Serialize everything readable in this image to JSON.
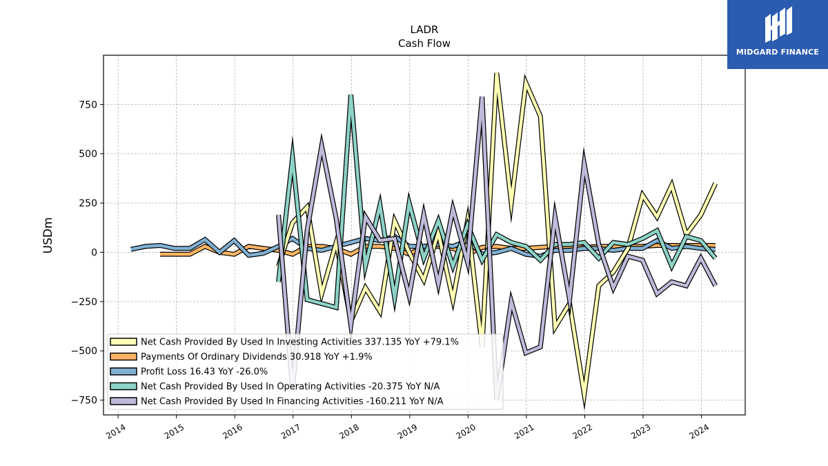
{
  "chart_data": {
    "type": "line",
    "title": "LADR",
    "subtitle": "Cash Flow",
    "xlabel": "",
    "ylabel": "USDm",
    "xlim": [
      2013.75,
      2024.75
    ],
    "ylim": [
      -825,
      1000
    ],
    "yticks": [
      -750,
      -500,
      -250,
      0,
      250,
      500,
      750
    ],
    "ytick_labels": [
      "−750",
      "−500",
      "−250",
      "0",
      "250",
      "500",
      "750"
    ],
    "xticks": [
      2014,
      2015,
      2016,
      2017,
      2018,
      2019,
      2020,
      2021,
      2022,
      2023,
      2024
    ],
    "xtick_labels": [
      "2014",
      "2015",
      "2016",
      "2017",
      "2018",
      "2019",
      "2020",
      "2021",
      "2022",
      "2023",
      "2024"
    ],
    "grid": true,
    "legend_position": "lower-left",
    "series": [
      {
        "name": "Payments Of Ordinary Dividends",
        "legend": "Payments Of Ordinary Dividends  30.918 YoY +1.9%",
        "color": "#fdb462",
        "points": [
          [
            2014.72,
            -10
          ],
          [
            2014.97,
            -10
          ],
          [
            2015.23,
            -10
          ],
          [
            2015.49,
            30
          ],
          [
            2015.74,
            0
          ],
          [
            2015.99,
            -10
          ],
          [
            2016.24,
            30
          ],
          [
            2016.49,
            20
          ],
          [
            2016.75,
            10
          ],
          [
            2016.99,
            -10
          ],
          [
            2017.24,
            30
          ],
          [
            2017.49,
            30
          ],
          [
            2017.74,
            20
          ],
          [
            2017.99,
            -10
          ],
          [
            2018.24,
            30
          ],
          [
            2018.49,
            30
          ],
          [
            2018.74,
            20
          ],
          [
            2018.99,
            -10
          ],
          [
            2019.24,
            30
          ],
          [
            2019.49,
            30
          ],
          [
            2019.74,
            20
          ],
          [
            2019.99,
            -10
          ],
          [
            2020.24,
            25
          ],
          [
            2020.49,
            30
          ],
          [
            2020.74,
            20
          ],
          [
            2020.99,
            20
          ],
          [
            2021.24,
            25
          ],
          [
            2021.49,
            30
          ],
          [
            2021.74,
            30
          ],
          [
            2021.99,
            25
          ],
          [
            2022.24,
            30
          ],
          [
            2022.49,
            30
          ],
          [
            2022.74,
            30
          ],
          [
            2022.99,
            30
          ],
          [
            2023.24,
            35
          ],
          [
            2023.49,
            35
          ],
          [
            2023.74,
            35
          ],
          [
            2023.99,
            35
          ],
          [
            2024.24,
            35
          ]
        ]
      },
      {
        "name": "Profit Loss",
        "legend": "Profit Loss  16.43 YoY -26.0%",
        "color": "#80b1d3",
        "points": [
          [
            2014.22,
            15
          ],
          [
            2014.47,
            30
          ],
          [
            2014.72,
            35
          ],
          [
            2014.97,
            20
          ],
          [
            2015.23,
            20
          ],
          [
            2015.49,
            65
          ],
          [
            2015.74,
            0
          ],
          [
            2015.99,
            60
          ],
          [
            2016.24,
            -15
          ],
          [
            2016.49,
            -5
          ],
          [
            2016.75,
            30
          ],
          [
            2016.99,
            70
          ],
          [
            2017.24,
            20
          ],
          [
            2017.49,
            10
          ],
          [
            2017.74,
            30
          ],
          [
            2017.99,
            50
          ],
          [
            2018.24,
            70
          ],
          [
            2018.49,
            60
          ],
          [
            2018.74,
            80
          ],
          [
            2018.99,
            30
          ],
          [
            2019.24,
            30
          ],
          [
            2019.49,
            40
          ],
          [
            2019.74,
            30
          ],
          [
            2019.99,
            60
          ],
          [
            2020.24,
            -10
          ],
          [
            2020.49,
            0
          ],
          [
            2020.74,
            20
          ],
          [
            2020.99,
            -10
          ],
          [
            2021.24,
            -20
          ],
          [
            2021.49,
            10
          ],
          [
            2021.74,
            10
          ],
          [
            2021.99,
            20
          ],
          [
            2022.24,
            20
          ],
          [
            2022.49,
            10
          ],
          [
            2022.74,
            20
          ],
          [
            2022.99,
            20
          ],
          [
            2023.24,
            60
          ],
          [
            2023.49,
            20
          ],
          [
            2023.74,
            30
          ],
          [
            2023.99,
            20
          ],
          [
            2024.24,
            15
          ]
        ]
      },
      {
        "name": "Net Cash Provided By Used In Investing Activities",
        "legend": "Net Cash Provided By Used In Investing Activities  337.135 YoY +79.1%",
        "color": "#ffffb3",
        "points": [
          [
            2016.75,
            -70
          ],
          [
            2016.99,
            150
          ],
          [
            2017.24,
            230
          ],
          [
            2017.49,
            -210
          ],
          [
            2017.74,
            50
          ],
          [
            2017.99,
            -350
          ],
          [
            2018.24,
            -180
          ],
          [
            2018.49,
            -300
          ],
          [
            2018.74,
            160
          ],
          [
            2018.99,
            0
          ],
          [
            2019.24,
            -140
          ],
          [
            2019.49,
            100
          ],
          [
            2019.74,
            -240
          ],
          [
            2019.99,
            160
          ],
          [
            2020.24,
            -480
          ],
          [
            2020.49,
            910
          ],
          [
            2020.74,
            250
          ],
          [
            2020.99,
            860
          ],
          [
            2021.24,
            690
          ],
          [
            2021.49,
            -380
          ],
          [
            2021.74,
            -260
          ],
          [
            2021.99,
            -720
          ],
          [
            2022.24,
            -170
          ],
          [
            2022.49,
            -100
          ],
          [
            2022.74,
            20
          ],
          [
            2022.99,
            290
          ],
          [
            2023.24,
            180
          ],
          [
            2023.49,
            340
          ],
          [
            2023.74,
            90
          ],
          [
            2023.99,
            190
          ],
          [
            2024.24,
            350
          ]
        ]
      },
      {
        "name": "Net Cash Provided By Used In Operating Activities",
        "legend": "Net Cash Provided By Used In Operating Activities  -20.375 YoY N/A",
        "color": "#8dd3c7",
        "points": [
          [
            2016.75,
            -150
          ],
          [
            2016.99,
            480
          ],
          [
            2017.24,
            -240
          ],
          [
            2017.49,
            -260
          ],
          [
            2017.74,
            -280
          ],
          [
            2017.99,
            800
          ],
          [
            2018.24,
            -70
          ],
          [
            2018.49,
            240
          ],
          [
            2018.74,
            -230
          ],
          [
            2018.99,
            250
          ],
          [
            2019.24,
            -30
          ],
          [
            2019.49,
            160
          ],
          [
            2019.74,
            -70
          ],
          [
            2019.99,
            140
          ],
          [
            2020.24,
            -40
          ],
          [
            2020.49,
            90
          ],
          [
            2020.74,
            50
          ],
          [
            2020.99,
            30
          ],
          [
            2021.24,
            -40
          ],
          [
            2021.49,
            40
          ],
          [
            2021.74,
            40
          ],
          [
            2021.99,
            50
          ],
          [
            2022.24,
            -30
          ],
          [
            2022.49,
            50
          ],
          [
            2022.74,
            40
          ],
          [
            2022.99,
            70
          ],
          [
            2023.24,
            110
          ],
          [
            2023.49,
            -70
          ],
          [
            2023.74,
            80
          ],
          [
            2023.99,
            60
          ],
          [
            2024.24,
            -30
          ]
        ]
      },
      {
        "name": "Net Cash Provided By Used In Financing Activities",
        "legend": "Net Cash Provided By Used In Financing Activities  -160.211 YoY N/A",
        "color": "#bebada",
        "points": [
          [
            2016.75,
            190
          ],
          [
            2016.99,
            -700
          ],
          [
            2017.24,
            110
          ],
          [
            2017.49,
            540
          ],
          [
            2017.74,
            170
          ],
          [
            2017.99,
            -370
          ],
          [
            2018.24,
            180
          ],
          [
            2018.49,
            60
          ],
          [
            2018.74,
            70
          ],
          [
            2018.99,
            -220
          ],
          [
            2019.24,
            190
          ],
          [
            2019.49,
            -160
          ],
          [
            2019.74,
            220
          ],
          [
            2019.99,
            -50
          ],
          [
            2020.24,
            790
          ],
          [
            2020.49,
            -750
          ],
          [
            2020.74,
            -250
          ],
          [
            2020.99,
            -510
          ],
          [
            2021.24,
            -480
          ],
          [
            2021.49,
            180
          ],
          [
            2021.74,
            -240
          ],
          [
            2021.99,
            450
          ],
          [
            2022.24,
            40
          ],
          [
            2022.49,
            -180
          ],
          [
            2022.74,
            -20
          ],
          [
            2022.99,
            -40
          ],
          [
            2023.24,
            -210
          ],
          [
            2023.49,
            -150
          ],
          [
            2023.74,
            -170
          ],
          [
            2023.99,
            -30
          ],
          [
            2024.24,
            -170
          ]
        ]
      }
    ],
    "legend_order": [
      2,
      0,
      1,
      3,
      4
    ]
  },
  "branding": {
    "logo_text": "MIDGARD FINANCE",
    "logo_color": "#2b5cb0"
  }
}
